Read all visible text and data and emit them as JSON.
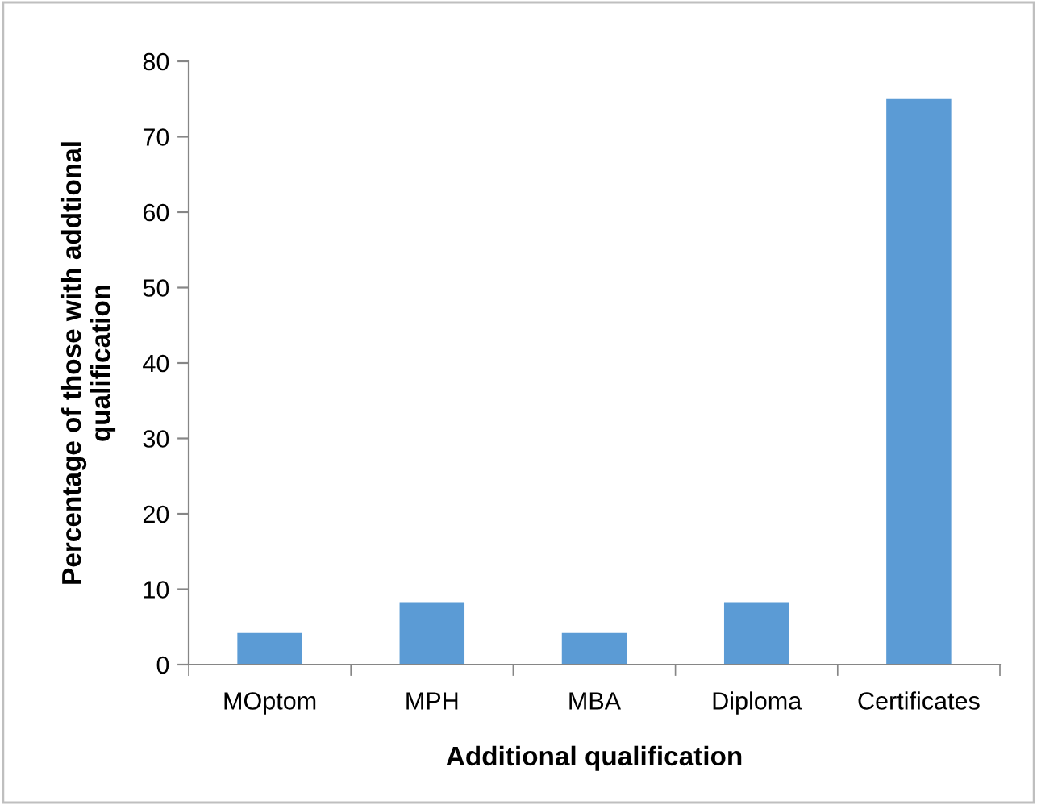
{
  "chart_data": {
    "type": "bar",
    "xlabel": "Additional qualification",
    "ylabel": "Percentage of those with addtional\nqualification",
    "categories": [
      "MOptom",
      "MPH",
      "MBA",
      "Diploma",
      "Certificates"
    ],
    "values": [
      4.2,
      8.3,
      4.2,
      8.3,
      75
    ],
    "color": "#5b9bd5",
    "ylim": [
      0,
      80
    ],
    "yticks": [
      0,
      10,
      20,
      30,
      40,
      50,
      60,
      70,
      80
    ],
    "grid": false
  }
}
